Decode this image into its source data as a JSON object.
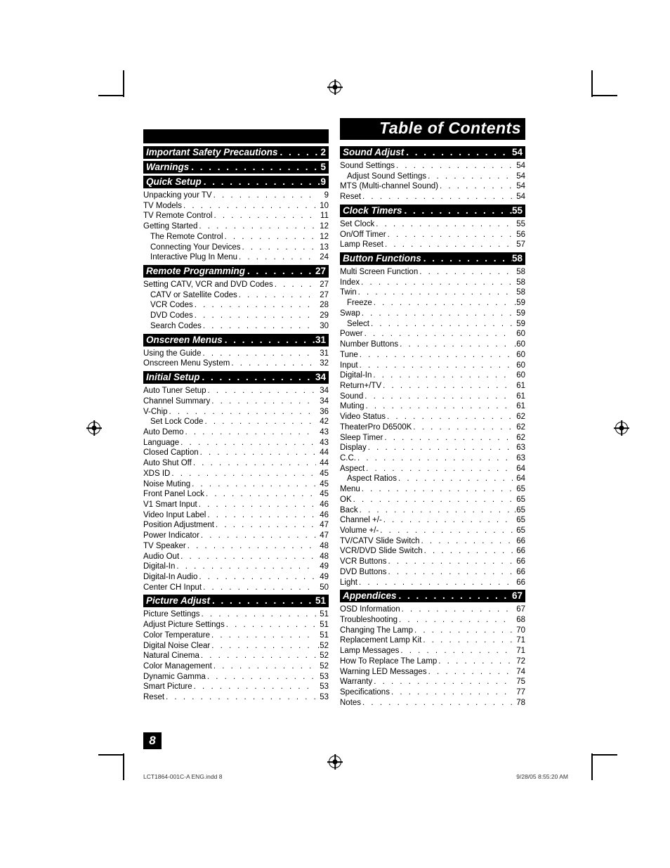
{
  "title": "Table of Contents",
  "page_number": "8",
  "footer_left": "LCT1864-001C-A ENG.indd   8",
  "footer_right": "9/28/05   8:55:20 AM",
  "dots": " .  .  .  .  .  .  .  .  .  .  .  .  .  .  .  .  .  .  .  .  .  .  .  .  .  .  .  .",
  "left_col": [
    {
      "type": "section",
      "label": "Important Safety Precautions",
      "page": "2"
    },
    {
      "type": "section",
      "label": "Warnings",
      "page": "5"
    },
    {
      "type": "section",
      "label": "Quick Setup",
      "page": "9"
    },
    {
      "type": "entry",
      "indent": 0,
      "label": "Unpacking your TV",
      "page": "9"
    },
    {
      "type": "entry",
      "indent": 0,
      "label": "TV Models",
      "page": "10"
    },
    {
      "type": "entry",
      "indent": 0,
      "label": "TV Remote Control",
      "page": "11"
    },
    {
      "type": "entry",
      "indent": 0,
      "label": "Getting Started",
      "page": "12"
    },
    {
      "type": "entry",
      "indent": 1,
      "label": "The Remote Control",
      "page": "12"
    },
    {
      "type": "entry",
      "indent": 1,
      "label": "Connecting Your Devices",
      "page": "13"
    },
    {
      "type": "entry",
      "indent": 1,
      "label": "Interactive Plug In Menu",
      "page": "24"
    },
    {
      "type": "section",
      "label": "Remote Programming",
      "page": "27"
    },
    {
      "type": "entry",
      "indent": 0,
      "label": "Setting CATV, VCR and DVD Codes",
      "page": "27"
    },
    {
      "type": "entry",
      "indent": 1,
      "label": "CATV or Satellite Codes",
      "page": "27"
    },
    {
      "type": "entry",
      "indent": 1,
      "label": "VCR Codes",
      "page": "28"
    },
    {
      "type": "entry",
      "indent": 1,
      "label": "DVD Codes",
      "page": "29"
    },
    {
      "type": "entry",
      "indent": 1,
      "label": "Search Codes",
      "page": "30"
    },
    {
      "type": "section",
      "label": "Onscreen Menus",
      "page": "31"
    },
    {
      "type": "entry",
      "indent": 0,
      "label": "Using the Guide",
      "page": "31"
    },
    {
      "type": "entry",
      "indent": 0,
      "label": "Onscreen Menu System",
      "page": "32"
    },
    {
      "type": "section",
      "label": "Initial Setup",
      "page": "34"
    },
    {
      "type": "entry",
      "indent": 0,
      "label": "Auto Tuner Setup",
      "page": "34"
    },
    {
      "type": "entry",
      "indent": 0,
      "label": "Channel Summary",
      "page": "34"
    },
    {
      "type": "entry",
      "indent": 0,
      "label": "V-Chip",
      "page": "36"
    },
    {
      "type": "entry",
      "indent": 1,
      "label": "Set Lock Code",
      "page": "42"
    },
    {
      "type": "entry",
      "indent": 0,
      "label": "Auto Demo",
      "page": "43"
    },
    {
      "type": "entry",
      "indent": 0,
      "label": "Language",
      "page": "43"
    },
    {
      "type": "entry",
      "indent": 0,
      "label": "Closed Caption",
      "page": "44"
    },
    {
      "type": "entry",
      "indent": 0,
      "label": "Auto Shut Off",
      "page": "44"
    },
    {
      "type": "entry",
      "indent": 0,
      "label": "XDS ID",
      "page": "45"
    },
    {
      "type": "entry",
      "indent": 0,
      "label": "Noise Muting",
      "page": "45"
    },
    {
      "type": "entry",
      "indent": 0,
      "label": "Front Panel Lock",
      "page": "45"
    },
    {
      "type": "entry",
      "indent": 0,
      "label": "V1 Smart Input",
      "page": "46"
    },
    {
      "type": "entry",
      "indent": 0,
      "label": "Video Input Label",
      "page": "46"
    },
    {
      "type": "entry",
      "indent": 0,
      "label": "Position Adjustment",
      "page": "47"
    },
    {
      "type": "entry",
      "indent": 0,
      "label": "Power Indicator",
      "page": "47"
    },
    {
      "type": "entry",
      "indent": 0,
      "label": "TV Speaker",
      "page": "48"
    },
    {
      "type": "entry",
      "indent": 0,
      "label": "Audio Out",
      "page": "48"
    },
    {
      "type": "entry",
      "indent": 0,
      "label": "Digital-In",
      "page": "49"
    },
    {
      "type": "entry",
      "indent": 0,
      "label": "Digital-In Audio",
      "page": "49"
    },
    {
      "type": "entry",
      "indent": 0,
      "label": "Center CH Input",
      "page": "50"
    },
    {
      "type": "section",
      "label": "Picture Adjust",
      "page": "51"
    },
    {
      "type": "entry",
      "indent": 0,
      "label": "Picture Settings",
      "page": "51"
    },
    {
      "type": "entry",
      "indent": 0,
      "label": "Adjust Picture Settings",
      "page": "51"
    },
    {
      "type": "entry",
      "indent": 0,
      "label": "Color Temperature",
      "page": "51"
    },
    {
      "type": "entry",
      "indent": 0,
      "label": "Digital Noise Clear",
      "page": ".52"
    },
    {
      "type": "entry",
      "indent": 0,
      "label": "Natural Cinema",
      "page": "52"
    },
    {
      "type": "entry",
      "indent": 0,
      "label": "Color Management",
      "page": "52"
    },
    {
      "type": "entry",
      "indent": 0,
      "label": "Dynamic Gamma",
      "page": "53"
    },
    {
      "type": "entry",
      "indent": 0,
      "label": "Smart Picture",
      "page": "53"
    },
    {
      "type": "entry",
      "indent": 0,
      "label": "Reset",
      "page": "53"
    }
  ],
  "right_col": [
    {
      "type": "section",
      "label": "Sound Adjust",
      "page": "54"
    },
    {
      "type": "entry",
      "indent": 0,
      "label": "Sound Settings",
      "page": "54"
    },
    {
      "type": "entry",
      "indent": 1,
      "label": "Adjust Sound Settings",
      "page": "54"
    },
    {
      "type": "entry",
      "indent": 0,
      "label": "MTS (Multi-channel Sound)",
      "page": "54"
    },
    {
      "type": "entry",
      "indent": 0,
      "label": "Reset",
      "page": "54"
    },
    {
      "type": "section",
      "label": "Clock Timers",
      "page": "55"
    },
    {
      "type": "entry",
      "indent": 0,
      "label": "Set Clock",
      "page": "55"
    },
    {
      "type": "entry",
      "indent": 0,
      "label": "On/Off Timer",
      "page": "56"
    },
    {
      "type": "entry",
      "indent": 0,
      "label": "Lamp Reset",
      "page": "57"
    },
    {
      "type": "section",
      "label": "Button Functions",
      "page": "58"
    },
    {
      "type": "entry",
      "indent": 0,
      "label": "Multi Screen Function",
      "page": "58"
    },
    {
      "type": "entry",
      "indent": 0,
      "label": "Index",
      "page": "58"
    },
    {
      "type": "entry",
      "indent": 0,
      "label": "Twin",
      "page": "58"
    },
    {
      "type": "entry",
      "indent": 1,
      "label": "Freeze",
      "page": ".59"
    },
    {
      "type": "entry",
      "indent": 0,
      "label": "Swap",
      "page": "59"
    },
    {
      "type": "entry",
      "indent": 1,
      "label": "Select",
      "page": "59"
    },
    {
      "type": "entry",
      "indent": 0,
      "label": "Power",
      "page": "60"
    },
    {
      "type": "entry",
      "indent": 0,
      "label": "Number Buttons",
      "page": ".60"
    },
    {
      "type": "entry",
      "indent": 0,
      "label": "Tune",
      "page": "60"
    },
    {
      "type": "entry",
      "indent": 0,
      "label": "Input",
      "page": "60"
    },
    {
      "type": "entry",
      "indent": 0,
      "label": "Digital-In",
      "page": "60"
    },
    {
      "type": "entry",
      "indent": 0,
      "label": "Return+/TV",
      "page": "61"
    },
    {
      "type": "entry",
      "indent": 0,
      "label": "Sound",
      "page": "61"
    },
    {
      "type": "entry",
      "indent": 0,
      "label": "Muting",
      "page": "61"
    },
    {
      "type": "entry",
      "indent": 0,
      "label": "Video Status",
      "page": "62"
    },
    {
      "type": "entry",
      "indent": 0,
      "label": "TheaterPro D6500K",
      "page": "62"
    },
    {
      "type": "entry",
      "indent": 0,
      "label": "Sleep Timer",
      "page": "62"
    },
    {
      "type": "entry",
      "indent": 0,
      "label": "Display",
      "page": "63"
    },
    {
      "type": "entry",
      "indent": 0,
      "label": "C.C.",
      "page": "63"
    },
    {
      "type": "entry",
      "indent": 0,
      "label": "Aspect",
      "page": "64"
    },
    {
      "type": "entry",
      "indent": 1,
      "label": "Aspect Ratios",
      "page": "64"
    },
    {
      "type": "entry",
      "indent": 0,
      "label": "Menu",
      "page": "65"
    },
    {
      "type": "entry",
      "indent": 0,
      "label": "OK",
      "page": "65"
    },
    {
      "type": "entry",
      "indent": 0,
      "label": "Back",
      "page": ".65"
    },
    {
      "type": "entry",
      "indent": 0,
      "label": "Channel +/-",
      "page": "65"
    },
    {
      "type": "entry",
      "indent": 0,
      "label": "Volume +/-",
      "page": "65"
    },
    {
      "type": "entry",
      "indent": 0,
      "label": "TV/CATV Slide Switch",
      "page": "66"
    },
    {
      "type": "entry",
      "indent": 0,
      "label": "VCR/DVD Slide Switch",
      "page": "66"
    },
    {
      "type": "entry",
      "indent": 0,
      "label": "VCR Buttons",
      "page": "66"
    },
    {
      "type": "entry",
      "indent": 0,
      "label": "DVD Buttons",
      "page": "66"
    },
    {
      "type": "entry",
      "indent": 0,
      "label": "Light",
      "page": "66"
    },
    {
      "type": "section",
      "label": "Appendices",
      "page": "67"
    },
    {
      "type": "entry",
      "indent": 0,
      "label": "OSD Information",
      "page": "67"
    },
    {
      "type": "entry",
      "indent": 0,
      "label": "Troubleshooting",
      "page": "68"
    },
    {
      "type": "entry",
      "indent": 0,
      "label": "Changing The Lamp",
      "page": "70"
    },
    {
      "type": "entry",
      "indent": 0,
      "label": "Replacement Lamp Kit",
      "page": "71"
    },
    {
      "type": "entry",
      "indent": 0,
      "label": "Lamp Messages",
      "page": "71"
    },
    {
      "type": "entry",
      "indent": 0,
      "label": "How To Replace The  Lamp",
      "page": "72"
    },
    {
      "type": "entry",
      "indent": 0,
      "label": "Warning LED Messages",
      "page": "74"
    },
    {
      "type": "entry",
      "indent": 0,
      "label": "Warranty",
      "page": "75"
    },
    {
      "type": "entry",
      "indent": 0,
      "label": "Specifications",
      "page": "77"
    },
    {
      "type": "entry",
      "indent": 0,
      "label": "Notes",
      "page": "78"
    }
  ]
}
